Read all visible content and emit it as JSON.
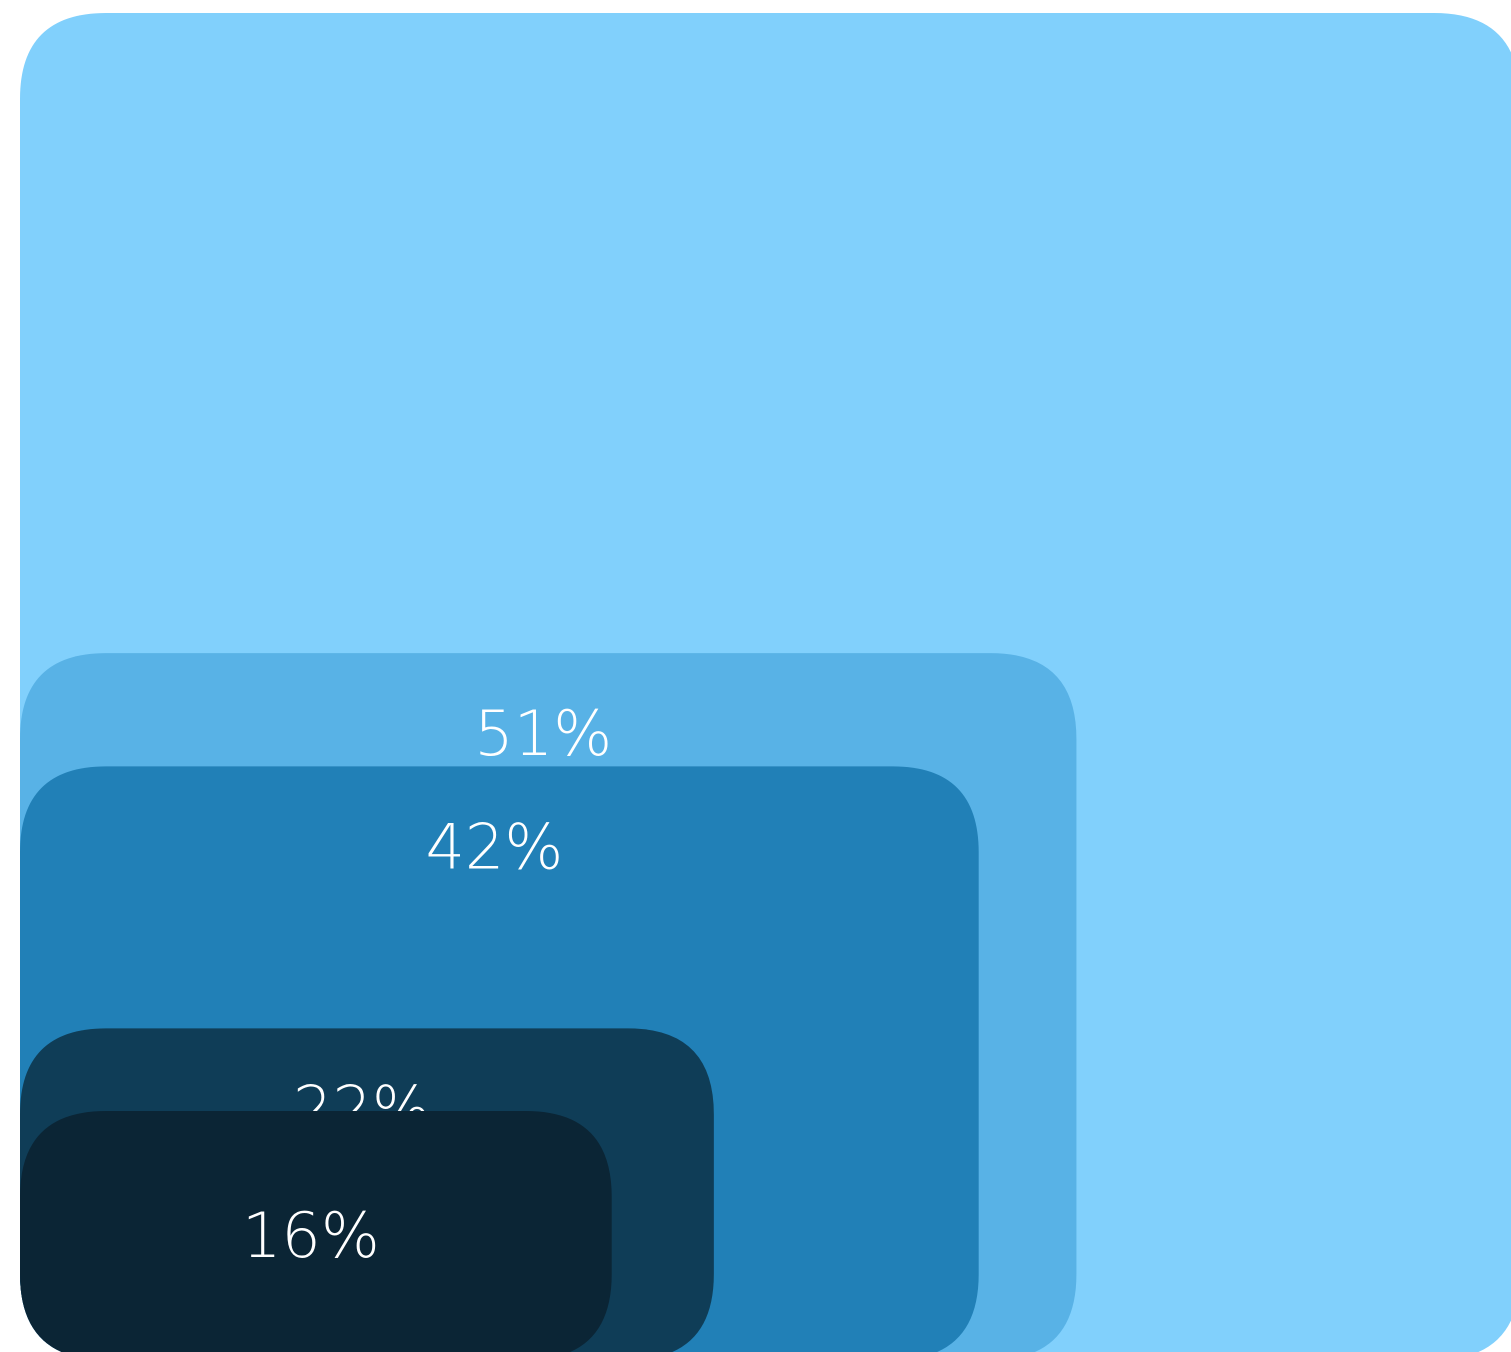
{
  "chart_data": {
    "type": "nested-squares",
    "title": "",
    "series": [
      {
        "value": 100,
        "color": "#81d0fc",
        "label": ""
      },
      {
        "value": 51,
        "color": "#58b2e6",
        "label": "51%"
      },
      {
        "value": 42,
        "color": "#2180b7",
        "label": "42%"
      },
      {
        "value": 22,
        "color": "#0f3d57",
        "label": "22%"
      },
      {
        "value": 16,
        "color": "#0b2535",
        "label": "16%"
      }
    ]
  }
}
